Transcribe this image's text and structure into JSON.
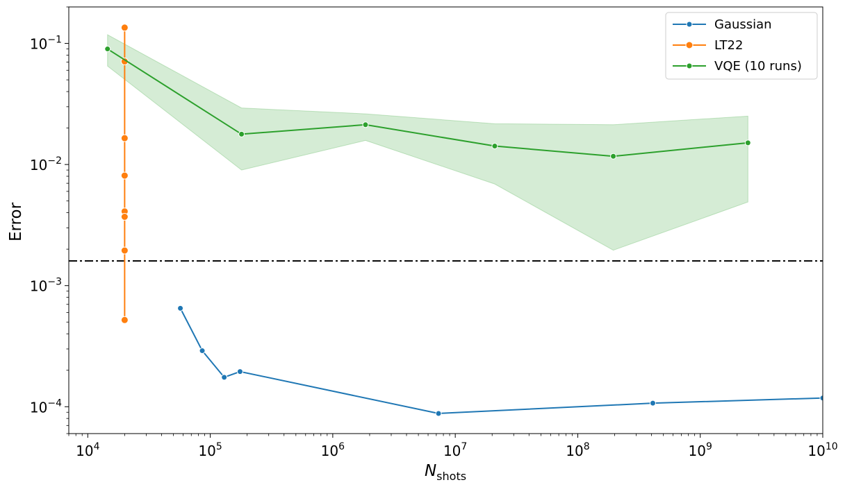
{
  "chart_data": {
    "type": "line",
    "xscale": "log",
    "yscale": "log",
    "xlim": [
      7000.0,
      10000000000.0
    ],
    "ylim": [
      6e-05,
      0.2
    ],
    "xlabel": {
      "main": "N",
      "sub": "shots"
    },
    "ylabel": "Error",
    "grid": false,
    "legend_position": "top-right",
    "x_ticks": [
      {
        "value": 10000.0,
        "base": "10",
        "exp": "4"
      },
      {
        "value": 100000.0,
        "base": "10",
        "exp": "5"
      },
      {
        "value": 1000000.0,
        "base": "10",
        "exp": "6"
      },
      {
        "value": 10000000.0,
        "base": "10",
        "exp": "7"
      },
      {
        "value": 100000000.0,
        "base": "10",
        "exp": "8"
      },
      {
        "value": 1000000000.0,
        "base": "10",
        "exp": "9"
      },
      {
        "value": 10000000000.0,
        "base": "10",
        "exp": "10"
      }
    ],
    "y_ticks": [
      {
        "value": 0.0001,
        "base": "10",
        "exp": "−4"
      },
      {
        "value": 0.001,
        "base": "10",
        "exp": "−3"
      },
      {
        "value": 0.01,
        "base": "10",
        "exp": "−2"
      },
      {
        "value": 0.1,
        "base": "10",
        "exp": "−1"
      }
    ],
    "reference_line": {
      "y": 0.0016,
      "style": "dash-dot",
      "color": "#000000"
    },
    "series": [
      {
        "name": "Gaussian",
        "color": "#1f77b4",
        "marker": "small",
        "points": [
          {
            "x": 57000.0,
            "y": 0.00065
          },
          {
            "x": 86000.0,
            "y": 0.00029
          },
          {
            "x": 130000.0,
            "y": 0.000175
          },
          {
            "x": 175000.0,
            "y": 0.000195
          },
          {
            "x": 7300000.0,
            "y": 8.8e-05
          },
          {
            "x": 410000000.0,
            "y": 0.000107
          },
          {
            "x": 10000000000.0,
            "y": 0.000118
          }
        ]
      },
      {
        "name": "LT22",
        "color": "#ff7f0e",
        "marker": "large",
        "points": [
          {
            "x": 20000.0,
            "y": 0.135
          },
          {
            "x": 20000.0,
            "y": 0.071
          },
          {
            "x": 20000.0,
            "y": 0.0165
          },
          {
            "x": 20000.0,
            "y": 0.0081
          },
          {
            "x": 20000.0,
            "y": 0.0041
          },
          {
            "x": 20000.0,
            "y": 0.0037
          },
          {
            "x": 20000.0,
            "y": 0.00195
          },
          {
            "x": 20000.0,
            "y": 0.00052
          }
        ]
      },
      {
        "name": "VQE (10 runs)",
        "color": "#2ca02c",
        "marker": "small",
        "points": [
          {
            "x": 14500.0,
            "y": 0.09
          },
          {
            "x": 180000.0,
            "y": 0.0178
          },
          {
            "x": 1850000.0,
            "y": 0.0213
          },
          {
            "x": 21000000.0,
            "y": 0.0142
          },
          {
            "x": 195000000.0,
            "y": 0.0117
          },
          {
            "x": 2450000000.0,
            "y": 0.0151
          }
        ],
        "band": [
          {
            "x": 14500.0,
            "lo": 0.065,
            "hi": 0.118
          },
          {
            "x": 180000.0,
            "lo": 0.009,
            "hi": 0.0293
          },
          {
            "x": 1850000.0,
            "lo": 0.0158,
            "hi": 0.0262
          },
          {
            "x": 21000000.0,
            "lo": 0.0069,
            "hi": 0.0217
          },
          {
            "x": 195000000.0,
            "lo": 0.00196,
            "hi": 0.0213
          },
          {
            "x": 2450000000.0,
            "lo": 0.0049,
            "hi": 0.0251
          }
        ]
      }
    ]
  }
}
